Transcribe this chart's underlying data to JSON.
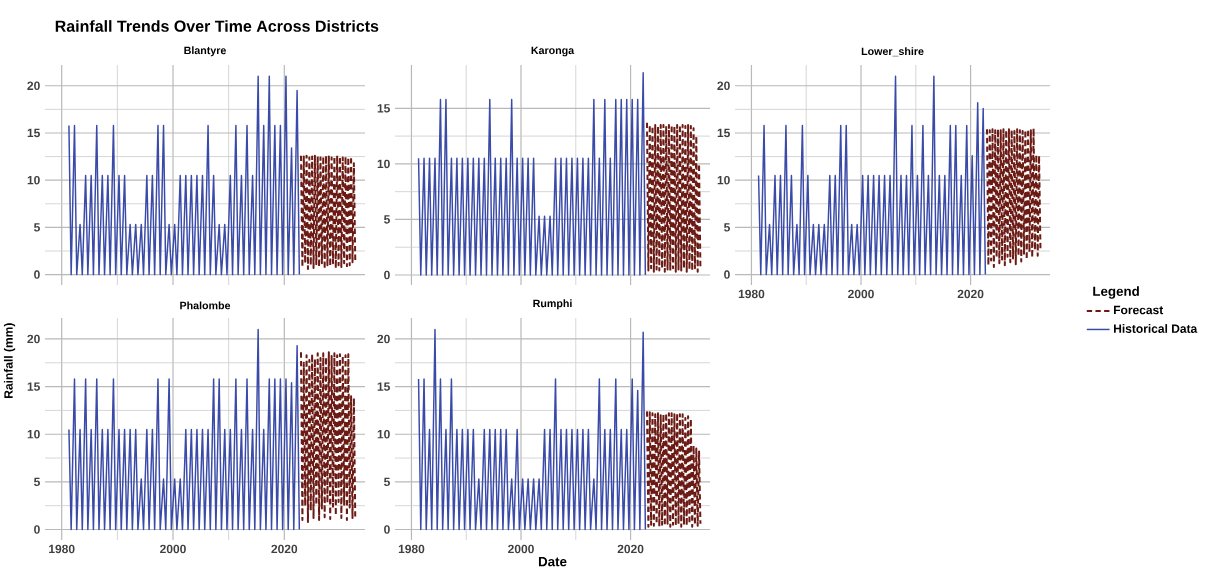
{
  "chart_data": [
    {
      "type": "line",
      "title": "Blantyre",
      "annotations": [
        "Rainfall Trends Over Time Across Districts"
      ],
      "xlim": [
        1977,
        2034.5
      ],
      "ylim": [
        -1.1,
        22.2
      ],
      "xticks": [
        1980,
        2000,
        2020
      ],
      "yticks": [
        0,
        5,
        10,
        15,
        20
      ],
      "grid": true,
      "tick_labels": "y",
      "x": [
        1981.3,
        1981.7,
        1982.3,
        1982.7,
        1983.3,
        1983.7,
        1984.3,
        1984.7,
        1985.3,
        1985.7,
        1986.3,
        1986.7,
        1987.3,
        1987.7,
        1988.3,
        1988.7,
        1989.3,
        1989.7,
        1990.3,
        1990.7,
        1991.3,
        1991.7,
        1992.3,
        1992.7,
        1993.3,
        1993.7,
        1994.3,
        1994.7,
        1995.3,
        1995.7,
        1996.3,
        1996.7,
        1997.3,
        1997.7,
        1998.3,
        1998.7,
        1999.3,
        1999.7,
        2000.3,
        2000.7,
        2001.3,
        2001.7,
        2002.3,
        2002.7,
        2003.3,
        2003.7,
        2004.3,
        2004.7,
        2005.3,
        2005.7,
        2006.3,
        2006.7,
        2007.3,
        2007.7,
        2008.3,
        2008.7,
        2009.3,
        2009.7,
        2010.3,
        2010.7,
        2011.3,
        2011.7,
        2012.3,
        2012.7,
        2013.3,
        2013.7,
        2014.3,
        2014.7,
        2015.3,
        2015.7,
        2016.3,
        2016.7,
        2017.3,
        2017.7,
        2018.3,
        2018.7,
        2019.3,
        2019.7,
        2020.3,
        2020.7,
        2021.3,
        2021.7,
        2022.3,
        2022.7
      ],
      "series": [
        {
          "color": "#6b1a14",
          "line_style": "dashed",
          "x": [
            2023,
            2023.25,
            2023.5,
            2023.75,
            2024,
            2024.25,
            2024.5,
            2024.75,
            2025,
            2025.25,
            2025.5,
            2025.75,
            2026,
            2026.25,
            2026.5,
            2026.75,
            2027,
            2027.25,
            2027.5,
            2027.75,
            2028,
            2028.25,
            2028.5,
            2028.75,
            2029,
            2029.25,
            2029.5,
            2029.75,
            2030,
            2030.25,
            2030.5,
            2030.75,
            2031,
            2031.25,
            2031.5,
            2031.75,
            2032,
            2032.25,
            2032.5,
            2032.75
          ],
          "values": [
            12.6,
            0.8,
            12.5,
            1.2,
            12.6,
            0.6,
            12.4,
            1.0,
            12.5,
            0.7,
            12.6,
            1.1,
            12.5,
            0.8,
            12.4,
            1.2,
            12.5,
            0.6,
            12.6,
            1.0,
            12.5,
            0.9,
            12.4,
            1.2,
            12.5,
            0.7,
            12.6,
            1.0,
            12.5,
            0.8,
            12.4,
            1.2,
            12.5,
            0.9,
            12.4,
            1.0,
            12.5,
            1.3,
            11.8,
            1.5
          ]
        },
        {
          "color": "#3a4aa8",
          "line_style": "solid",
          "values": [
            15.8,
            0,
            15.8,
            0,
            5.3,
            0,
            10.5,
            0,
            10.5,
            0,
            15.8,
            0,
            10.5,
            0,
            10.5,
            0,
            15.8,
            0,
            10.5,
            0,
            10.5,
            0,
            5.3,
            0,
            5.3,
            0,
            5.3,
            0,
            10.5,
            0,
            10.5,
            0,
            15.8,
            0,
            15.8,
            0,
            5.3,
            0,
            5.3,
            0,
            10.5,
            0,
            10.5,
            0,
            10.5,
            0,
            10.5,
            0,
            10.5,
            0,
            15.8,
            0,
            10.5,
            0,
            5.3,
            0,
            5.3,
            0,
            10.5,
            0,
            15.8,
            0,
            10.5,
            0,
            15.8,
            0,
            10.5,
            0,
            21,
            0,
            15.8,
            0,
            21,
            0,
            15.8,
            0,
            15.8,
            0,
            21,
            0,
            13.4,
            0,
            19.5,
            0
          ]
        }
      ]
    },
    {
      "type": "line",
      "title": "Karonga",
      "xlim": [
        1977,
        2034.5
      ],
      "ylim": [
        -0.9,
        18.9
      ],
      "xticks": [
        1980,
        2000,
        2020
      ],
      "yticks": [
        0,
        5,
        10,
        15
      ],
      "grid": true,
      "tick_labels": "y",
      "x": [
        1981.3,
        1981.7,
        1982.3,
        1982.7,
        1983.3,
        1983.7,
        1984.3,
        1984.7,
        1985.3,
        1985.7,
        1986.3,
        1986.7,
        1987.3,
        1987.7,
        1988.3,
        1988.7,
        1989.3,
        1989.7,
        1990.3,
        1990.7,
        1991.3,
        1991.7,
        1992.3,
        1992.7,
        1993.3,
        1993.7,
        1994.3,
        1994.7,
        1995.3,
        1995.7,
        1996.3,
        1996.7,
        1997.3,
        1997.7,
        1998.3,
        1998.7,
        1999.3,
        1999.7,
        2000.3,
        2000.7,
        2001.3,
        2001.7,
        2002.3,
        2002.7,
        2003.3,
        2003.7,
        2004.3,
        2004.7,
        2005.3,
        2005.7,
        2006.3,
        2006.7,
        2007.3,
        2007.7,
        2008.3,
        2008.7,
        2009.3,
        2009.7,
        2010.3,
        2010.7,
        2011.3,
        2011.7,
        2012.3,
        2012.7,
        2013.3,
        2013.7,
        2014.3,
        2014.7,
        2015.3,
        2015.7,
        2016.3,
        2016.7,
        2017.3,
        2017.7,
        2018.3,
        2018.7,
        2019.3,
        2019.7,
        2020.3,
        2020.7,
        2021.3,
        2021.7,
        2022.3,
        2022.7
      ],
      "series": [
        {
          "color": "#6b1a14",
          "line_style": "dashed",
          "x": [
            2023,
            2023.25,
            2023.5,
            2023.75,
            2024,
            2024.25,
            2024.5,
            2024.75,
            2025,
            2025.25,
            2025.5,
            2025.75,
            2026,
            2026.25,
            2026.5,
            2026.75,
            2027,
            2027.25,
            2027.5,
            2027.75,
            2028,
            2028.25,
            2028.5,
            2028.75,
            2029,
            2029.25,
            2029.5,
            2029.75,
            2030,
            2030.25,
            2030.5,
            2030.75,
            2031,
            2031.25,
            2031.5,
            2031.75,
            2032,
            2032.25,
            2032.5,
            2032.75
          ],
          "values": [
            13.7,
            0.4,
            13.5,
            0.6,
            13.4,
            0.3,
            13.5,
            0.5,
            13.4,
            0.4,
            13.5,
            0.6,
            13.5,
            0.3,
            13.4,
            0.5,
            13.5,
            0.4,
            13.5,
            0.6,
            13.4,
            0.3,
            13.5,
            0.5,
            13.5,
            0.4,
            13.5,
            0.6,
            13.4,
            0.3,
            13.5,
            0.5,
            13.4,
            0.4,
            13.2,
            0.6,
            12.5,
            0.3,
            10.0,
            0.5
          ]
        },
        {
          "color": "#3a4aa8",
          "line_style": "solid",
          "values": [
            10.5,
            0,
            10.5,
            0,
            10.5,
            0,
            10.5,
            0,
            15.8,
            0,
            15.8,
            0,
            10.5,
            0,
            10.5,
            0,
            10.5,
            0,
            10.5,
            0,
            10.5,
            0,
            10.5,
            0,
            10.5,
            0,
            15.8,
            0,
            10.5,
            0,
            10.5,
            0,
            10.5,
            0,
            15.8,
            0,
            10.5,
            0,
            10.5,
            0,
            10.5,
            0,
            10.5,
            0,
            5.3,
            0,
            5.3,
            0,
            5.3,
            0,
            10.5,
            0,
            10.5,
            0,
            10.5,
            0,
            10.5,
            0,
            10.5,
            0,
            10.5,
            0,
            10.5,
            0,
            15.8,
            0,
            10.5,
            0,
            15.8,
            0,
            10.5,
            0,
            15.8,
            0,
            15.8,
            0,
            15.8,
            0,
            15.8,
            0,
            15.8,
            0,
            18.2,
            0
          ]
        }
      ]
    },
    {
      "type": "line",
      "title": "Lower_shire",
      "legend": "right",
      "legend_title": "Legend",
      "xlim": [
        1977,
        2034.5
      ],
      "ylim": [
        -1.1,
        22.2
      ],
      "xticks": [
        1980,
        2000,
        2020
      ],
      "yticks": [
        0,
        5,
        10,
        15,
        20
      ],
      "grid": true,
      "x": [
        1981.3,
        1981.7,
        1982.3,
        1982.7,
        1983.3,
        1983.7,
        1984.3,
        1984.7,
        1985.3,
        1985.7,
        1986.3,
        1986.7,
        1987.3,
        1987.7,
        1988.3,
        1988.7,
        1989.3,
        1989.7,
        1990.3,
        1990.7,
        1991.3,
        1991.7,
        1992.3,
        1992.7,
        1993.3,
        1993.7,
        1994.3,
        1994.7,
        1995.3,
        1995.7,
        1996.3,
        1996.7,
        1997.3,
        1997.7,
        1998.3,
        1998.7,
        1999.3,
        1999.7,
        2000.3,
        2000.7,
        2001.3,
        2001.7,
        2002.3,
        2002.7,
        2003.3,
        2003.7,
        2004.3,
        2004.7,
        2005.3,
        2005.7,
        2006.3,
        2006.7,
        2007.3,
        2007.7,
        2008.3,
        2008.7,
        2009.3,
        2009.7,
        2010.3,
        2010.7,
        2011.3,
        2011.7,
        2012.3,
        2012.7,
        2013.3,
        2013.7,
        2014.3,
        2014.7,
        2015.3,
        2015.7,
        2016.3,
        2016.7,
        2017.3,
        2017.7,
        2018.3,
        2018.7,
        2019.3,
        2019.7,
        2020.3,
        2020.7,
        2021.3,
        2021.7,
        2022.3,
        2022.7
      ],
      "series": [
        {
          "name": "Forecast",
          "color": "#6b1a14",
          "line_style": "dashed",
          "x": [
            2023,
            2023.25,
            2023.5,
            2023.75,
            2024,
            2024.25,
            2024.5,
            2024.75,
            2025,
            2025.25,
            2025.5,
            2025.75,
            2026,
            2026.25,
            2026.5,
            2026.75,
            2027,
            2027.25,
            2027.5,
            2027.75,
            2028,
            2028.25,
            2028.5,
            2028.75,
            2029,
            2029.25,
            2029.5,
            2029.75,
            2030,
            2030.25,
            2030.5,
            2030.75,
            2031,
            2031.25,
            2031.5,
            2031.75,
            2032,
            2032.25,
            2032.5,
            2032.75
          ],
          "values": [
            15.4,
            1.0,
            15.3,
            1.5,
            15.4,
            0.8,
            15.3,
            1.8,
            15.4,
            1.2,
            15.3,
            1.6,
            15.4,
            1.0,
            15.3,
            1.9,
            15.4,
            1.3,
            15.3,
            1.7,
            15.2,
            1.1,
            15.4,
            2.0,
            15.3,
            1.4,
            15.2,
            2.2,
            15.3,
            1.6,
            15.4,
            2.4,
            15.3,
            1.8,
            15.5,
            2.6,
            12.7,
            2.0,
            12.6,
            2.8
          ]
        },
        {
          "name": "Historical Data",
          "color": "#3a4aa8",
          "line_style": "solid",
          "values": [
            10.5,
            0,
            15.8,
            0,
            5.3,
            0,
            10.5,
            0,
            10.5,
            0,
            15.8,
            0,
            10.5,
            0,
            5.3,
            0,
            15.8,
            0,
            10.5,
            0,
            5.3,
            0,
            5.3,
            0,
            5.3,
            0,
            10.5,
            0,
            10.5,
            0,
            15.8,
            0,
            15.8,
            0,
            5.3,
            0,
            5.3,
            0,
            10.5,
            0,
            10.5,
            0,
            10.5,
            0,
            10.5,
            0,
            10.5,
            0,
            10.5,
            0,
            21,
            0,
            10.5,
            0,
            10.5,
            0,
            15.8,
            0,
            10.5,
            0,
            15.8,
            0,
            10.5,
            0,
            21,
            0,
            10.5,
            0,
            10.5,
            0,
            15.8,
            0,
            15.8,
            0,
            10.5,
            0,
            15.8,
            0,
            12.6,
            0,
            18.2,
            0,
            17.6,
            0
          ]
        }
      ]
    },
    {
      "type": "line",
      "title": "Phalombe",
      "ylabel": "Rainfall (mm)",
      "xlim": [
        1977,
        2034.5
      ],
      "ylim": [
        -1.1,
        22.2
      ],
      "xticks": [
        1980,
        2000,
        2020
      ],
      "yticks": [
        0,
        5,
        10,
        15,
        20
      ],
      "grid": true,
      "x": [
        1981.3,
        1981.7,
        1982.3,
        1982.7,
        1983.3,
        1983.7,
        1984.3,
        1984.7,
        1985.3,
        1985.7,
        1986.3,
        1986.7,
        1987.3,
        1987.7,
        1988.3,
        1988.7,
        1989.3,
        1989.7,
        1990.3,
        1990.7,
        1991.3,
        1991.7,
        1992.3,
        1992.7,
        1993.3,
        1993.7,
        1994.3,
        1994.7,
        1995.3,
        1995.7,
        1996.3,
        1996.7,
        1997.3,
        1997.7,
        1998.3,
        1998.7,
        1999.3,
        1999.7,
        2000.3,
        2000.7,
        2001.3,
        2001.7,
        2002.3,
        2002.7,
        2003.3,
        2003.7,
        2004.3,
        2004.7,
        2005.3,
        2005.7,
        2006.3,
        2006.7,
        2007.3,
        2007.7,
        2008.3,
        2008.7,
        2009.3,
        2009.7,
        2010.3,
        2010.7,
        2011.3,
        2011.7,
        2012.3,
        2012.7,
        2013.3,
        2013.7,
        2014.3,
        2014.7,
        2015.3,
        2015.7,
        2016.3,
        2016.7,
        2017.3,
        2017.7,
        2018.3,
        2018.7,
        2019.3,
        2019.7,
        2020.3,
        2020.7,
        2021.3,
        2021.7,
        2022.3,
        2022.7
      ],
      "series": [
        {
          "color": "#6b1a14",
          "line_style": "dashed",
          "x": [
            2023,
            2023.25,
            2023.5,
            2023.75,
            2024,
            2024.25,
            2024.5,
            2024.75,
            2025,
            2025.25,
            2025.5,
            2025.75,
            2026,
            2026.25,
            2026.5,
            2026.75,
            2027,
            2027.25,
            2027.5,
            2027.75,
            2028,
            2028.25,
            2028.5,
            2028.75,
            2029,
            2029.25,
            2029.5,
            2029.75,
            2030,
            2030.25,
            2030.5,
            2030.75,
            2031,
            2031.25,
            2031.5,
            2031.75,
            2032,
            2032.25,
            2032.5,
            2032.75
          ],
          "values": [
            18.6,
            1.0,
            17.5,
            2.5,
            18.3,
            0.8,
            17.8,
            2.0,
            18.4,
            1.2,
            17.9,
            2.6,
            18.5,
            1.0,
            18.0,
            2.2,
            18.5,
            1.3,
            18.1,
            2.8,
            18.6,
            1.1,
            18.2,
            2.4,
            18.5,
            1.5,
            18.3,
            2.9,
            18.4,
            1.2,
            18.2,
            2.6,
            18.3,
            1.0,
            18.4,
            2.3,
            14.0,
            1.2,
            13.8,
            1.0
          ]
        },
        {
          "color": "#3a4aa8",
          "line_style": "solid",
          "values": [
            10.5,
            0,
            15.8,
            0,
            10.5,
            0,
            15.8,
            0,
            10.5,
            0,
            15.8,
            0,
            10.5,
            0,
            10.5,
            0,
            15.8,
            0,
            10.5,
            0,
            10.5,
            0,
            10.5,
            0,
            10.5,
            0,
            5.3,
            0,
            10.5,
            0,
            10.5,
            0,
            15.8,
            0,
            5.3,
            0,
            15.8,
            0,
            5.3,
            0,
            5.3,
            0,
            10.5,
            0,
            10.5,
            0,
            10.5,
            0,
            10.5,
            0,
            10.5,
            0,
            15.8,
            0,
            15.8,
            0,
            10.5,
            0,
            10.5,
            0,
            15.8,
            0,
            10.5,
            0,
            15.8,
            0,
            10.5,
            0,
            21,
            0,
            10.5,
            0,
            15.8,
            0,
            15.8,
            0,
            15.8,
            0,
            15.8,
            0,
            15.4,
            0,
            19.3,
            0
          ]
        }
      ]
    },
    {
      "type": "line",
      "title": "Rumphi",
      "xlabel": "Date",
      "xlim": [
        1977,
        2034.5
      ],
      "ylim": [
        -1.1,
        22.2
      ],
      "xticks": [
        1980,
        2000,
        2020
      ],
      "yticks": [
        0,
        5,
        10,
        15,
        20
      ],
      "grid": true,
      "x": [
        1981.3,
        1981.7,
        1982.3,
        1982.7,
        1983.3,
        1983.7,
        1984.3,
        1984.7,
        1985.3,
        1985.7,
        1986.3,
        1986.7,
        1987.3,
        1987.7,
        1988.3,
        1988.7,
        1989.3,
        1989.7,
        1990.3,
        1990.7,
        1991.3,
        1991.7,
        1992.3,
        1992.7,
        1993.3,
        1993.7,
        1994.3,
        1994.7,
        1995.3,
        1995.7,
        1996.3,
        1996.7,
        1997.3,
        1997.7,
        1998.3,
        1998.7,
        1999.3,
        1999.7,
        2000.3,
        2000.7,
        2001.3,
        2001.7,
        2002.3,
        2002.7,
        2003.3,
        2003.7,
        2004.3,
        2004.7,
        2005.3,
        2005.7,
        2006.3,
        2006.7,
        2007.3,
        2007.7,
        2008.3,
        2008.7,
        2009.3,
        2009.7,
        2010.3,
        2010.7,
        2011.3,
        2011.7,
        2012.3,
        2012.7,
        2013.3,
        2013.7,
        2014.3,
        2014.7,
        2015.3,
        2015.7,
        2016.3,
        2016.7,
        2017.3,
        2017.7,
        2018.3,
        2018.7,
        2019.3,
        2019.7,
        2020.3,
        2020.7,
        2021.3,
        2021.7,
        2022.3,
        2022.7
      ],
      "series": [
        {
          "color": "#6b1a14",
          "line_style": "dashed",
          "x": [
            2023,
            2023.25,
            2023.5,
            2023.75,
            2024,
            2024.25,
            2024.5,
            2024.75,
            2025,
            2025.25,
            2025.5,
            2025.75,
            2026,
            2026.25,
            2026.5,
            2026.75,
            2027,
            2027.25,
            2027.5,
            2027.75,
            2028,
            2028.25,
            2028.5,
            2028.75,
            2029,
            2029.25,
            2029.5,
            2029.75,
            2030,
            2030.25,
            2030.5,
            2030.75,
            2031,
            2031.25,
            2031.5,
            2031.75,
            2032,
            2032.25,
            2032.5,
            2032.75
          ],
          "values": [
            12.4,
            0.3,
            12.3,
            0.5,
            12.2,
            0.4,
            12.1,
            0.6,
            12.2,
            0.3,
            12.0,
            0.5,
            12.1,
            0.4,
            12.2,
            0.6,
            12.2,
            0.3,
            12.2,
            0.5,
            12.1,
            0.4,
            12.2,
            0.6,
            12.1,
            0.3,
            12.1,
            0.5,
            11.7,
            0.4,
            11.9,
            0.6,
            11.6,
            0.3,
            8.8,
            0.5,
            8.5,
            0.4,
            8.2,
            0.6
          ]
        },
        {
          "color": "#3a4aa8",
          "line_style": "solid",
          "values": [
            15.8,
            0,
            15.8,
            0,
            10.5,
            0,
            21,
            0,
            15.8,
            0,
            10.5,
            0,
            15.8,
            0,
            10.5,
            0,
            10.5,
            0,
            10.5,
            0,
            10.5,
            0,
            5.3,
            0,
            10.5,
            0,
            10.5,
            0,
            10.5,
            0,
            10.5,
            0,
            10.5,
            0,
            5.3,
            0,
            10.5,
            0,
            5.3,
            0,
            5.3,
            0,
            5.3,
            0,
            5.3,
            0,
            10.5,
            0,
            10.5,
            0,
            15.8,
            0,
            10.5,
            0,
            10.5,
            0,
            10.5,
            0,
            10.5,
            0,
            10.5,
            0,
            10.5,
            0,
            5.3,
            0,
            15.8,
            0,
            10.5,
            0,
            10.5,
            0,
            15.8,
            0,
            10.5,
            0,
            10.5,
            0,
            15.8,
            0,
            14.6,
            0,
            20.7,
            0
          ]
        }
      ]
    }
  ]
}
